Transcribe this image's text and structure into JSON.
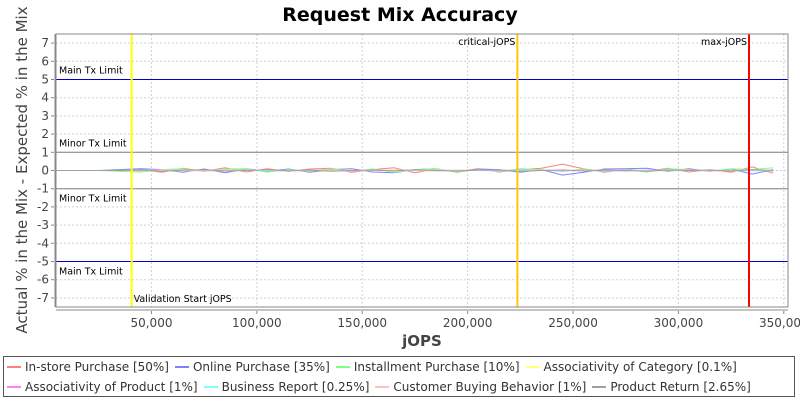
{
  "chart_data": {
    "type": "line",
    "title": "Request Mix Accuracy",
    "xlabel": "jOPS",
    "ylabel": "Actual % in the Mix - Expected % in the Mix",
    "xlim": [
      4700,
      352000
    ],
    "ylim": [
      -7.5,
      7.5
    ],
    "xticks": [
      50000,
      100000,
      150000,
      200000,
      250000,
      300000,
      350000
    ],
    "xtick_labels": [
      "50,000",
      "100,000",
      "150,000",
      "200,000",
      "250,000",
      "300,000",
      "350,000"
    ],
    "yticks": [
      -7,
      -6,
      -5,
      -4,
      -3,
      -2,
      -1,
      0,
      1,
      2,
      3,
      4,
      5,
      6,
      7
    ],
    "grid": true,
    "legend_placement": "bottom",
    "x": [
      5000,
      15000,
      25000,
      35000,
      45000,
      55000,
      65000,
      75000,
      85000,
      95000,
      105000,
      115000,
      125000,
      135000,
      145000,
      155000,
      165000,
      175000,
      185000,
      195000,
      205000,
      215000,
      225000,
      235000,
      245000,
      255000,
      265000,
      275000,
      285000,
      295000,
      305000,
      315000,
      325000,
      335000,
      345000
    ],
    "series": [
      {
        "name": "In-store Purchase [50%]",
        "color": "#ff8080",
        "values": [
          0,
          0,
          0,
          0,
          0.05,
          -0.1,
          0.12,
          -0.05,
          0.15,
          -0.08,
          0.1,
          -0.05,
          0.08,
          0.12,
          -0.1,
          0.05,
          0.15,
          -0.12,
          0.08,
          -0.05,
          0.1,
          -0.08,
          0.05,
          0.12,
          0.35,
          0.1,
          -0.1,
          0.08,
          -0.05,
          0.12,
          -0.08,
          0.05,
          -0.1,
          0.2,
          -0.15
        ]
      },
      {
        "name": "Online Purchase [35%]",
        "color": "#8080ff",
        "values": [
          0,
          0,
          0,
          0.05,
          0.1,
          0.05,
          -0.1,
          0.08,
          -0.12,
          0.1,
          -0.05,
          0.08,
          -0.1,
          0.05,
          0.1,
          -0.08,
          -0.12,
          0.05,
          0.1,
          -0.1,
          0.08,
          0.05,
          -0.1,
          0.05,
          -0.25,
          -0.1,
          0.08,
          0.1,
          0.12,
          -0.05,
          0.1,
          -0.05,
          0.08,
          -0.2,
          0.05
        ]
      },
      {
        "name": "Installment Purchase [10%]",
        "color": "#80ff80",
        "values": [
          0,
          0,
          0,
          -0.05,
          -0.08,
          0.05,
          0.1,
          -0.05,
          0.08,
          0.1,
          -0.1,
          0.05,
          -0.05,
          0.1,
          -0.05,
          0.08,
          -0.1,
          0.05,
          0.1,
          -0.08,
          0.05,
          -0.05,
          0.1,
          0.05,
          -0.05,
          0.08,
          -0.05,
          0.05,
          -0.08,
          0.1,
          0.05,
          -0.05,
          0.1,
          0.05,
          0.15
        ]
      },
      {
        "name": "Associativity of Category [0.1%]",
        "color": "#ffff80",
        "values": [
          0,
          0,
          0,
          0,
          0.01,
          0,
          -0.01,
          0,
          0.01,
          0,
          0,
          -0.01,
          0,
          0.01,
          0,
          0,
          -0.01,
          0,
          0.01,
          0,
          0,
          0,
          0.01,
          0,
          0,
          -0.01,
          0,
          0.01,
          0,
          0,
          0,
          -0.01,
          0,
          0.01,
          0
        ]
      },
      {
        "name": "Associativity of Product [1%]",
        "color": "#ff80ff",
        "values": [
          0,
          0,
          0,
          0,
          0.02,
          -0.03,
          0.02,
          0,
          -0.02,
          0.03,
          0,
          -0.02,
          0.02,
          0,
          -0.03,
          0.02,
          0,
          0.03,
          -0.02,
          0,
          0.02,
          -0.02,
          0.03,
          0,
          -0.02,
          0.02,
          0,
          -0.03,
          0.02,
          0,
          0.03,
          -0.02,
          0,
          0.02,
          -0.03
        ]
      },
      {
        "name": "Business Report [0.25%]",
        "color": "#80ffff",
        "values": [
          0,
          0,
          0,
          0,
          0.01,
          0,
          0.02,
          -0.01,
          0,
          0.01,
          -0.02,
          0,
          0.01,
          0,
          -0.01,
          0.02,
          0,
          -0.01,
          0,
          0.01,
          0,
          -0.02,
          0.01,
          0,
          0.01,
          0,
          -0.01,
          0.02,
          0,
          -0.01,
          0,
          0.01,
          0,
          -0.02,
          0.01
        ]
      },
      {
        "name": "Customer Buying Behavior [1%]",
        "color": "#ffc0c0",
        "values": [
          0,
          0,
          0,
          0,
          -0.02,
          0.03,
          0,
          -0.03,
          0.02,
          0,
          0.03,
          -0.02,
          0,
          0.02,
          -0.03,
          0,
          0.02,
          0,
          -0.02,
          0.03,
          0,
          0.02,
          -0.03,
          0,
          0.02,
          -0.02,
          0.03,
          0,
          -0.02,
          0,
          0.02,
          -0.03,
          0,
          0.03,
          0
        ]
      },
      {
        "name": "Product Return [2.65%]",
        "color": "#a0a0a0",
        "values": [
          0,
          0,
          0,
          0,
          0.03,
          -0.04,
          0.02,
          0.04,
          -0.03,
          0,
          0.04,
          -0.02,
          0.03,
          -0.04,
          0,
          0.03,
          -0.02,
          0.04,
          0,
          -0.03,
          0.02,
          0.03,
          -0.04,
          0,
          0.03,
          -0.03,
          0.02,
          0,
          -0.04,
          0.03,
          0,
          0.02,
          -0.03,
          0.04,
          0
        ]
      }
    ],
    "horizontal_markers": [
      {
        "label": "Main Tx Limit",
        "y": 5,
        "color": "#0000cc"
      },
      {
        "label": "Minor Tx Limit",
        "y": 1,
        "color": "#808080"
      },
      {
        "label": "Minor Tx Limit",
        "y": -1,
        "color": "#808080"
      },
      {
        "label": "Main Tx Limit",
        "y": -5,
        "color": "#0000cc"
      }
    ],
    "vertical_markers": [
      {
        "label": "Validation Start jOPS",
        "x": 40600,
        "color": "#ffff00"
      },
      {
        "label": "critical-jOPS",
        "x": 223600,
        "color": "#ffc800"
      },
      {
        "label": "max-jOPS",
        "x": 333500,
        "color": "#ff0000"
      }
    ]
  }
}
